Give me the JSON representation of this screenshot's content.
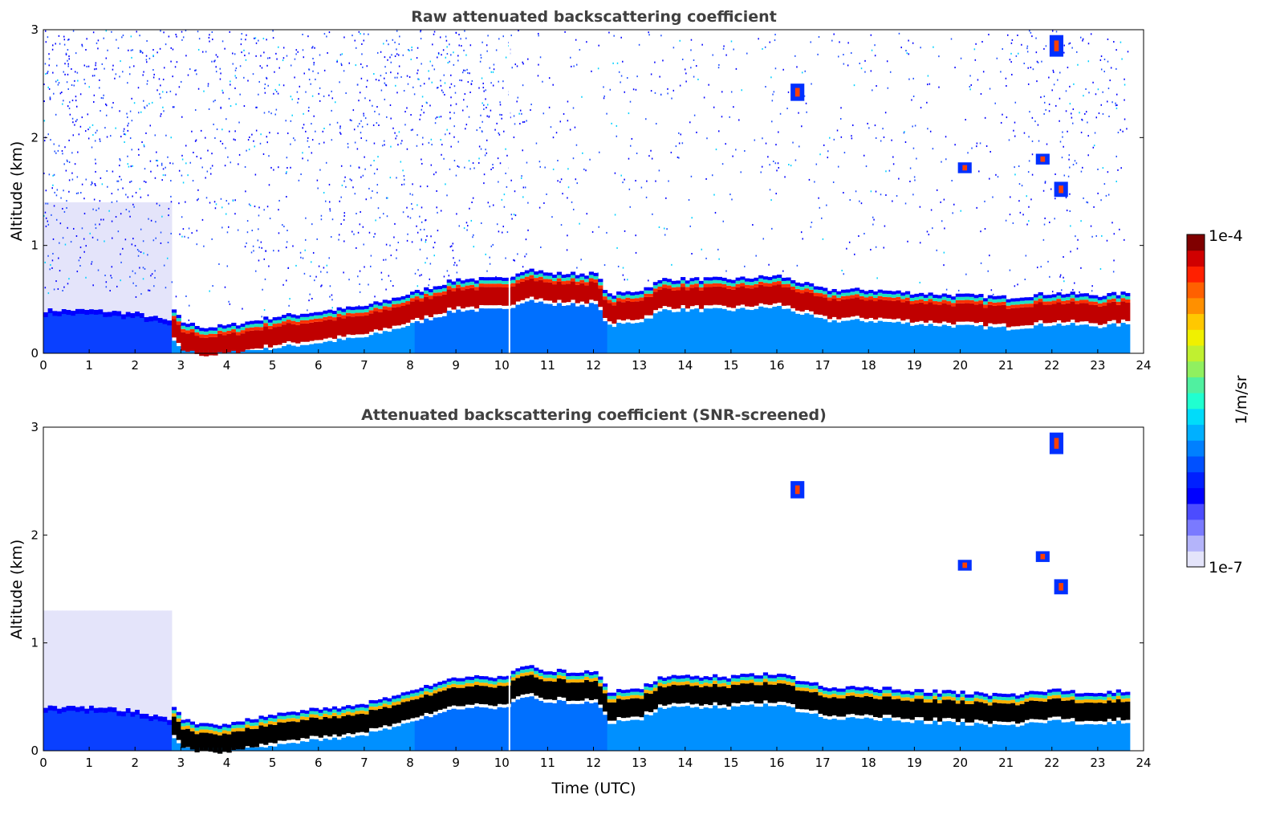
{
  "chart_data": [
    {
      "type": "heatmap",
      "title": "Raw attenuated backscattering coefficient",
      "xlabel": "",
      "ylabel": "Altitude (km)",
      "xlim": [
        0,
        24
      ],
      "ylim": [
        0,
        3
      ],
      "xticks": [
        "0",
        "1",
        "2",
        "3",
        "4",
        "5",
        "6",
        "7",
        "8",
        "9",
        "10",
        "11",
        "12",
        "13",
        "14",
        "15",
        "16",
        "17",
        "18",
        "19",
        "20",
        "21",
        "22",
        "23",
        "24"
      ],
      "yticks": [
        "0",
        "1",
        "2",
        "3"
      ],
      "screened": false
    },
    {
      "type": "heatmap",
      "title": "Attenuated backscattering coefficient (SNR-screened)",
      "xlabel": "Time (UTC)",
      "ylabel": "Altitude (km)",
      "xlim": [
        0,
        24
      ],
      "ylim": [
        0,
        3
      ],
      "xticks": [
        "0",
        "1",
        "2",
        "3",
        "4",
        "5",
        "6",
        "7",
        "8",
        "9",
        "10",
        "11",
        "12",
        "13",
        "14",
        "15",
        "16",
        "17",
        "18",
        "19",
        "20",
        "21",
        "22",
        "23",
        "24"
      ],
      "yticks": [
        "0",
        "1",
        "2",
        "3"
      ],
      "screened": true
    }
  ],
  "layer_top_km": {
    "time_utc": [
      0,
      1,
      2,
      2.7,
      3,
      3.5,
      4,
      5,
      6,
      7,
      8,
      9,
      10,
      10.5,
      11,
      12,
      12.3,
      13,
      13.5,
      14,
      15,
      16,
      17,
      18,
      19,
      20,
      21,
      22,
      23,
      23.65
    ],
    "altitude": [
      0.4,
      0.4,
      0.37,
      0.3,
      0.15,
      0.1,
      0.12,
      0.2,
      0.25,
      0.3,
      0.42,
      0.55,
      0.55,
      0.65,
      0.6,
      0.6,
      0.4,
      0.45,
      0.55,
      0.55,
      0.55,
      0.58,
      0.45,
      0.45,
      0.42,
      0.4,
      0.38,
      0.42,
      0.4,
      0.42
    ]
  },
  "data_end_utc": 23.65,
  "colorbar": {
    "label": "1/m/sr",
    "min_label": "1e-7",
    "max_label": "1e-4",
    "colors": [
      "#e4e4fa",
      "#b4b4fa",
      "#7a7aff",
      "#4c4cff",
      "#0000ff",
      "#0020ff",
      "#0050ff",
      "#0080ff",
      "#00b0ff",
      "#00dcfa",
      "#20ffd0",
      "#50f0a0",
      "#90f060",
      "#c0f030",
      "#f0f000",
      "#ffc800",
      "#ff9000",
      "#ff6000",
      "#ff2000",
      "#d00000",
      "#800000"
    ]
  }
}
